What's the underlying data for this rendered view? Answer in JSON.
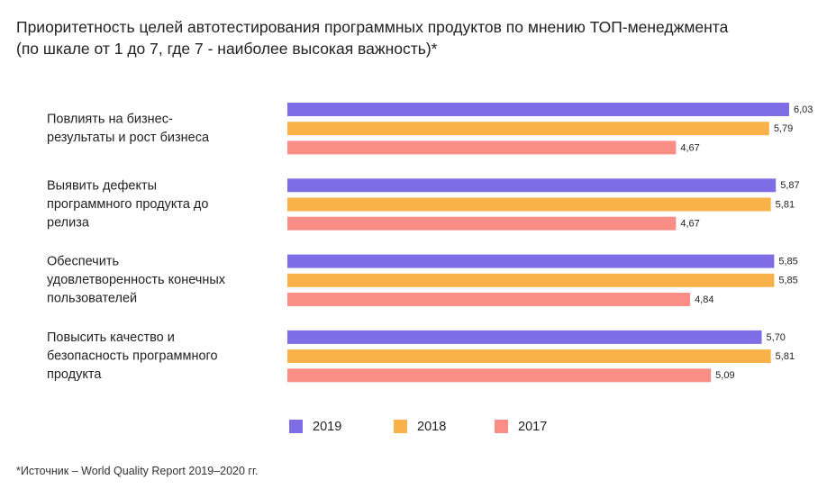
{
  "title_line1": "Приоритетность целей автотестирования программных продуктов по мнению ТОП-менеджмента",
  "title_line2": "(по шкале от 1 до 7, где 7 - наиболее высокая важность)*",
  "source": "*Источник – World Quality Report 2019–2020 гг.",
  "chart_data": {
    "type": "bar",
    "orientation": "horizontal",
    "categories": [
      [
        "Повлиять на бизнес-",
        "результаты и рост бизнеса"
      ],
      [
        "Выявить дефекты",
        "программного продукта до",
        "релиза"
      ],
      [
        "Обеспечить",
        "удовлетворенность конечных",
        "пользователей"
      ],
      [
        "Повысить качество и",
        "безопасность программного",
        "продукта"
      ]
    ],
    "series": [
      {
        "name": "2019",
        "color": "#7f6de6",
        "values": [
          6.03,
          5.87,
          5.85,
          5.7
        ],
        "labels": [
          "6,03",
          "5,87",
          "5,85",
          "5,70"
        ]
      },
      {
        "name": "2018",
        "color": "#f9b24a",
        "values": [
          5.79,
          5.81,
          5.85,
          5.81
        ],
        "labels": [
          "5,79",
          "5,81",
          "5,85",
          "5,81"
        ]
      },
      {
        "name": "2017",
        "color": "#fa8e86",
        "values": [
          4.67,
          4.67,
          4.84,
          5.09
        ],
        "labels": [
          "4,67",
          "4,67",
          "4,84",
          "5,09"
        ]
      }
    ],
    "xlim": [
      0,
      6.03
    ],
    "grid": false,
    "legend": "bottom"
  }
}
